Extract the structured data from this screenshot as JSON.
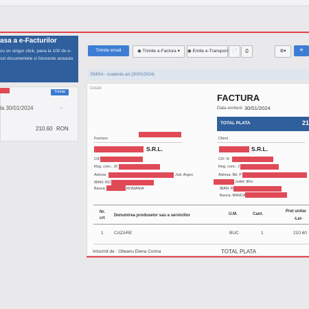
{
  "promo": {
    "title": "asa a e-Facturilor",
    "line1": "cu un singur click, pana la 100 de e-",
    "line2": "ozi documentele si foloseste aceasta"
  },
  "left_card": {
    "badge": "Trimite",
    "due": "la 30/01/2024",
    "amount": "210.60",
    "currency": "RON"
  },
  "toolbar": {
    "email": "Trimite email",
    "efactura": "Trimite e-Factura",
    "etransport": "Emite e-Transport",
    "pdf_icon": "pdf-icon",
    "print_icon": "print-icon",
    "gear_icon": "gear-icon",
    "plus": "+"
  },
  "strip": {
    "text": "EMISA - scadenta azi (30/01/2024)"
  },
  "invoice": {
    "detalii": "Detalii",
    "title": "FACTURA",
    "date_label": "Data emiterii:",
    "date_value": "30/01/2024",
    "total_label": "TOTAL PLATA",
    "total_value": "21",
    "supplier": {
      "heading": "Furnizor",
      "srl": "S.R.L.",
      "cif": "CIF",
      "reg": "Reg. com.: J0",
      "adresa": "Adresa",
      "jud": "Jud. Arges",
      "iban": "IBAN: RO",
      "banca": "Banca:",
      "country": "ROMANIA"
    },
    "client": {
      "heading": "Client",
      "srl": "S.R.L.",
      "cif": "CIF: R",
      "reg": "Reg. com.: J",
      "adresa": "Adresa: Bd. P",
      "jud": "Judet: Ilfov",
      "iban": "IBAN: R",
      "banca": "Banca: BANCA"
    },
    "table": {
      "col_nr": "Nr.",
      "col_nr2": "crt",
      "col_denumire": "Denumirea produselor sau a serviciilor",
      "col_um": "U.M.",
      "col_cant": "Cant.",
      "col_pret": "Pret unitar",
      "col_pret2": "-Lei-",
      "rows": [
        {
          "nr": "1",
          "denumire": "CAZARE",
          "um": "BUC",
          "cant": "1",
          "pret": "210.60"
        }
      ]
    },
    "intocmit": "Intocmit de : Olteanu Elena Corina",
    "total_footer": "TOTAL PLATA"
  },
  "colors": {
    "accent": "#3d7ed4",
    "dark_blue": "#2f5f9c",
    "red": "#e2424b"
  }
}
